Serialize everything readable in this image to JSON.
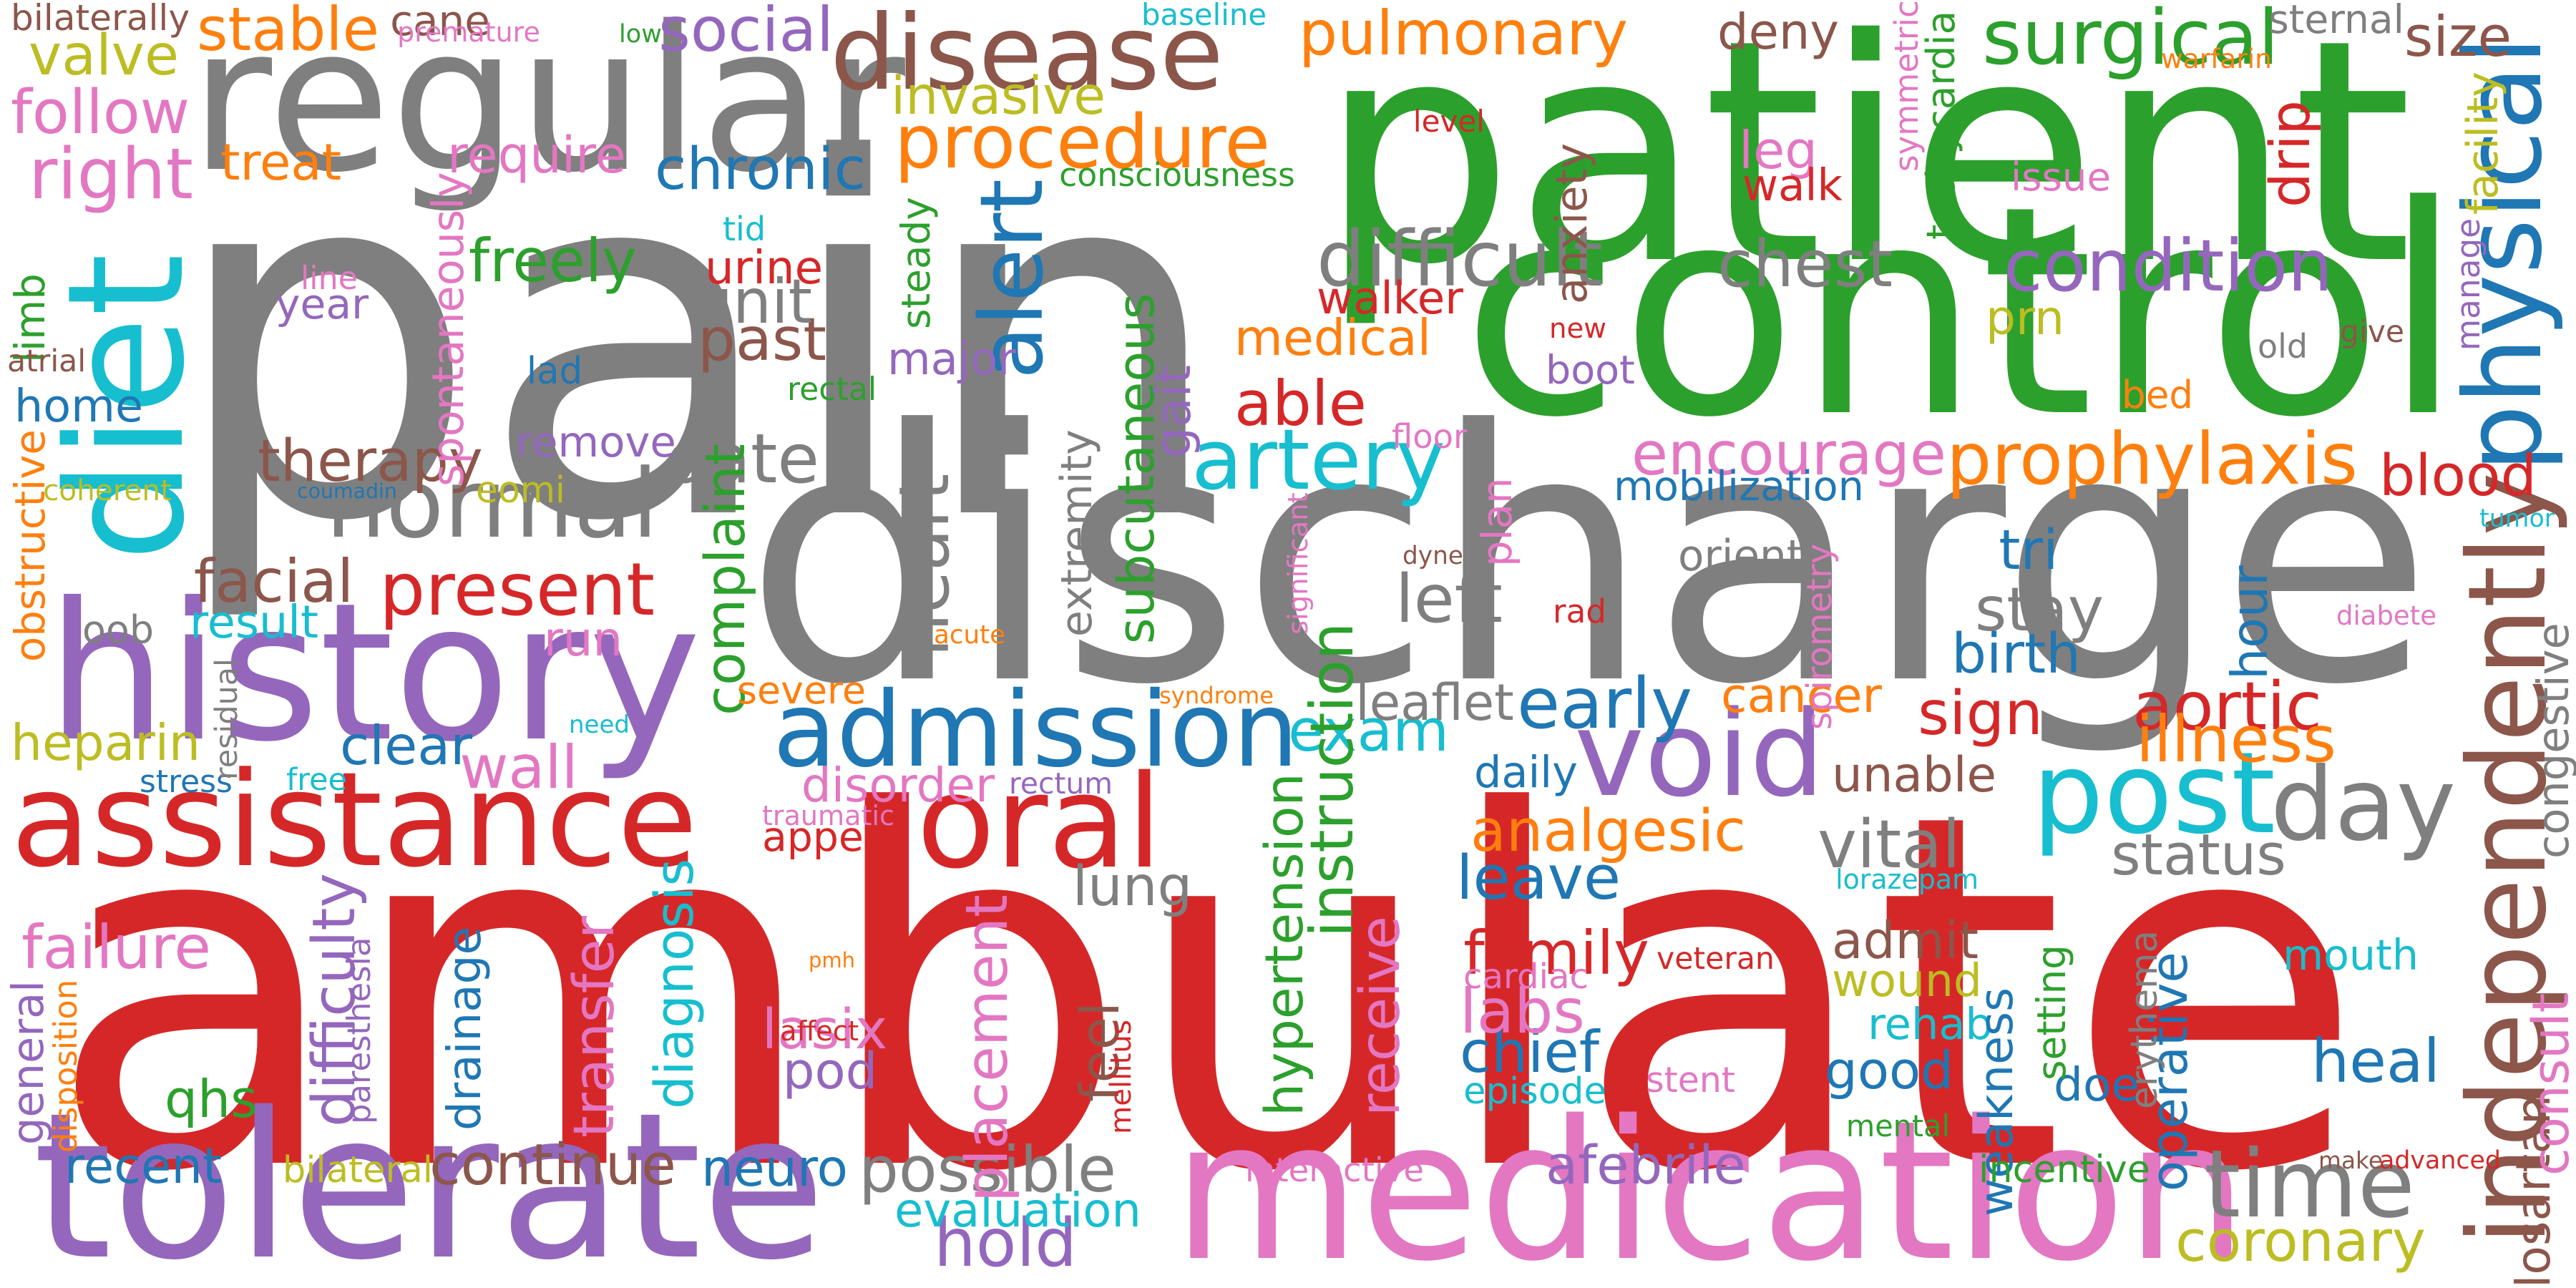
{
  "palette": {
    "gray": "#7f7f7f",
    "red": "#d62728",
    "green": "#2ca02c",
    "purple": "#9467bd",
    "cyan": "#17becf",
    "blue": "#1f77b4",
    "brown": "#8c564b",
    "orange": "#ff7f0e",
    "pink": "#e377c2",
    "olive": "#bcbd22"
  },
  "words": [
    {
      "text": "pain",
      "color": "gray"
    },
    {
      "text": "ambulate",
      "color": "red"
    },
    {
      "text": "discharge",
      "color": "gray"
    },
    {
      "text": "patient",
      "color": "green"
    },
    {
      "text": "control",
      "color": "green"
    },
    {
      "text": "regular",
      "color": "gray"
    },
    {
      "text": "history",
      "color": "purple"
    },
    {
      "text": "tolerate",
      "color": "purple"
    },
    {
      "text": "medication",
      "color": "pink"
    },
    {
      "text": "diet",
      "color": "cyan"
    },
    {
      "text": "disease",
      "color": "brown"
    },
    {
      "text": "normal",
      "color": "gray"
    },
    {
      "text": "assistance",
      "color": "red"
    },
    {
      "text": "admission",
      "color": "blue"
    },
    {
      "text": "void",
      "color": "purple"
    },
    {
      "text": "post",
      "color": "cyan"
    },
    {
      "text": "day",
      "color": "gray"
    },
    {
      "text": "time",
      "color": "gray"
    },
    {
      "text": "oral",
      "color": "red"
    },
    {
      "text": "physical",
      "color": "blue"
    },
    {
      "text": "independently",
      "color": "brown"
    },
    {
      "text": "procedure",
      "color": "orange"
    },
    {
      "text": "pulmonary",
      "color": "orange"
    },
    {
      "text": "surgical",
      "color": "green"
    },
    {
      "text": "condition",
      "color": "purple"
    },
    {
      "text": "chest",
      "color": "gray"
    },
    {
      "text": "difficult",
      "color": "gray"
    },
    {
      "text": "present",
      "color": "red"
    },
    {
      "text": "date",
      "color": "gray"
    },
    {
      "text": "artery",
      "color": "cyan"
    },
    {
      "text": "encourage",
      "color": "pink"
    },
    {
      "text": "prophylaxis",
      "color": "orange"
    },
    {
      "text": "blood",
      "color": "red"
    },
    {
      "text": "therapy",
      "color": "brown"
    },
    {
      "text": "chronic",
      "color": "blue"
    },
    {
      "text": "right",
      "color": "pink"
    },
    {
      "text": "follow",
      "color": "pink"
    },
    {
      "text": "valve",
      "color": "olive"
    },
    {
      "text": "stable",
      "color": "orange"
    },
    {
      "text": "social",
      "color": "purple"
    },
    {
      "text": "invasive",
      "color": "olive"
    },
    {
      "text": "alert",
      "color": "blue"
    },
    {
      "text": "subcutaneous",
      "color": "green"
    },
    {
      "text": "past",
      "color": "brown"
    },
    {
      "text": "unit",
      "color": "gray"
    },
    {
      "text": "freely",
      "color": "green"
    },
    {
      "text": "major",
      "color": "purple"
    },
    {
      "text": "medical",
      "color": "orange"
    },
    {
      "text": "able",
      "color": "red"
    },
    {
      "text": "exam",
      "color": "cyan"
    },
    {
      "text": "early",
      "color": "blue"
    },
    {
      "text": "sign",
      "color": "red"
    },
    {
      "text": "aortic",
      "color": "red"
    },
    {
      "text": "illness",
      "color": "orange"
    },
    {
      "text": "analgesic",
      "color": "orange"
    },
    {
      "text": "vital",
      "color": "gray"
    },
    {
      "text": "status",
      "color": "gray"
    },
    {
      "text": "leave",
      "color": "blue"
    },
    {
      "text": "family",
      "color": "red"
    },
    {
      "text": "wound",
      "color": "olive"
    },
    {
      "text": "admit",
      "color": "brown"
    },
    {
      "text": "unable",
      "color": "brown"
    },
    {
      "text": "heal",
      "color": "blue"
    },
    {
      "text": "good",
      "color": "blue"
    },
    {
      "text": "chief",
      "color": "blue"
    },
    {
      "text": "labs",
      "color": "pink"
    },
    {
      "text": "hold",
      "color": "purple"
    },
    {
      "text": "possible",
      "color": "gray"
    },
    {
      "text": "continue",
      "color": "brown"
    },
    {
      "text": "afebrile",
      "color": "purple"
    },
    {
      "text": "coronary",
      "color": "olive"
    },
    {
      "text": "evaluation",
      "color": "cyan"
    },
    {
      "text": "recent",
      "color": "blue"
    },
    {
      "text": "neuro",
      "color": "blue"
    },
    {
      "text": "clear",
      "color": "blue"
    },
    {
      "text": "wall",
      "color": "pink"
    },
    {
      "text": "heparin",
      "color": "olive"
    },
    {
      "text": "failure",
      "color": "pink"
    },
    {
      "text": "qhs",
      "color": "green"
    },
    {
      "text": "home",
      "color": "blue"
    },
    {
      "text": "facial",
      "color": "brown"
    },
    {
      "text": "year",
      "color": "purple"
    },
    {
      "text": "stay",
      "color": "gray"
    },
    {
      "text": "birth",
      "color": "blue"
    },
    {
      "text": "left",
      "color": "gray"
    },
    {
      "text": "orient",
      "color": "gray"
    },
    {
      "text": "mobilization",
      "color": "blue"
    },
    {
      "text": "tri",
      "color": "blue"
    },
    {
      "text": "hypertension",
      "color": "green"
    },
    {
      "text": "receive",
      "color": "pink"
    },
    {
      "text": "instruction",
      "color": "green"
    },
    {
      "text": "placement",
      "color": "pink"
    },
    {
      "text": "diagnosis",
      "color": "cyan"
    },
    {
      "text": "transfer",
      "color": "pink"
    },
    {
      "text": "drainage",
      "color": "blue"
    },
    {
      "text": "difficulty",
      "color": "purple"
    },
    {
      "text": "heart",
      "color": "gray"
    },
    {
      "text": "extremity",
      "color": "gray"
    },
    {
      "text": "gait",
      "color": "purple"
    },
    {
      "text": "complaint",
      "color": "green"
    },
    {
      "text": "spontaneously",
      "color": "pink"
    },
    {
      "text": "lung",
      "color": "gray"
    },
    {
      "text": "feel",
      "color": "brown"
    },
    {
      "text": "lasix",
      "color": "pink"
    },
    {
      "text": "pod",
      "color": "purple"
    },
    {
      "text": "appear",
      "color": "red"
    },
    {
      "text": "disorder",
      "color": "pink"
    },
    {
      "text": "mouth",
      "color": "cyan"
    },
    {
      "text": "rehab",
      "color": "cyan"
    },
    {
      "text": "doe",
      "color": "blue"
    },
    {
      "text": "cancer",
      "color": "orange"
    },
    {
      "text": "leaflet",
      "color": "gray"
    },
    {
      "text": "daily",
      "color": "blue"
    },
    {
      "text": "cardiac",
      "color": "pink"
    },
    {
      "text": "episode",
      "color": "cyan"
    },
    {
      "text": "weakness",
      "color": "blue"
    },
    {
      "text": "setting",
      "color": "green"
    },
    {
      "text": "operative",
      "color": "blue"
    },
    {
      "text": "erythema",
      "color": "gray"
    },
    {
      "text": "losartan",
      "color": "brown"
    },
    {
      "text": "consult",
      "color": "pink"
    },
    {
      "text": "congestive",
      "color": "gray"
    },
    {
      "text": "spirometry",
      "color": "pink"
    },
    {
      "text": "hour",
      "color": "blue"
    },
    {
      "text": "anxiety",
      "color": "brown"
    },
    {
      "text": "leg",
      "color": "pink"
    },
    {
      "text": "walk",
      "color": "red"
    },
    {
      "text": "walker",
      "color": "red"
    },
    {
      "text": "urine",
      "color": "red"
    },
    {
      "text": "deny",
      "color": "brown"
    },
    {
      "text": "sternal",
      "color": "gray"
    },
    {
      "text": "size",
      "color": "brown"
    },
    {
      "text": "issue",
      "color": "pink"
    },
    {
      "text": "drip",
      "color": "red"
    },
    {
      "text": "prn",
      "color": "olive"
    },
    {
      "text": "boot",
      "color": "purple"
    },
    {
      "text": "bed",
      "color": "orange"
    },
    {
      "text": "facility",
      "color": "olive"
    },
    {
      "text": "manage",
      "color": "purple"
    },
    {
      "text": "symmetric",
      "color": "pink"
    },
    {
      "text": "tachycardia",
      "color": "green"
    },
    {
      "text": "plan",
      "color": "pink"
    },
    {
      "text": "run",
      "color": "pink"
    },
    {
      "text": "remove",
      "color": "purple"
    },
    {
      "text": "require",
      "color": "pink"
    },
    {
      "text": "treat",
      "color": "orange"
    },
    {
      "text": "limb",
      "color": "green"
    },
    {
      "text": "obstructive",
      "color": "orange"
    },
    {
      "text": "general",
      "color": "purple"
    },
    {
      "text": "cane",
      "color": "brown"
    },
    {
      "text": "steady",
      "color": "green"
    },
    {
      "text": "severe",
      "color": "orange"
    },
    {
      "text": "eomi",
      "color": "olive"
    },
    {
      "text": "oob",
      "color": "gray"
    },
    {
      "text": "result",
      "color": "cyan"
    },
    {
      "text": "bilateral",
      "color": "olive"
    },
    {
      "text": "mental",
      "color": "green"
    },
    {
      "text": "incentive",
      "color": "green"
    },
    {
      "text": "stent",
      "color": "pink"
    },
    {
      "text": "veteran",
      "color": "red"
    },
    {
      "text": "lorazepam",
      "color": "cyan"
    },
    {
      "text": "tumor",
      "color": "cyan"
    },
    {
      "text": "diabete",
      "color": "pink"
    },
    {
      "text": "paresthesia",
      "color": "purple"
    },
    {
      "text": "disposition",
      "color": "orange"
    },
    {
      "text": "traumatic",
      "color": "pink"
    },
    {
      "text": "rectum",
      "color": "purple"
    },
    {
      "text": "syndrome",
      "color": "orange"
    },
    {
      "text": "acute",
      "color": "orange"
    },
    {
      "text": "significant",
      "color": "pink"
    },
    {
      "text": "dyne",
      "color": "brown"
    },
    {
      "text": "rad",
      "color": "red"
    },
    {
      "text": "floor",
      "color": "pink"
    },
    {
      "text": "new",
      "color": "red"
    },
    {
      "text": "coumadin",
      "color": "blue"
    },
    {
      "text": "coherent",
      "color": "olive"
    },
    {
      "text": "lad",
      "color": "blue"
    },
    {
      "text": "atrial",
      "color": "brown"
    },
    {
      "text": "line",
      "color": "pink"
    },
    {
      "text": "tid",
      "color": "cyan"
    },
    {
      "text": "rectal",
      "color": "green"
    },
    {
      "text": "consciousness",
      "color": "green"
    },
    {
      "text": "bilaterally",
      "color": "brown"
    },
    {
      "text": "premature",
      "color": "pink"
    },
    {
      "text": "low",
      "color": "green"
    },
    {
      "text": "baseline",
      "color": "cyan"
    },
    {
      "text": "warfarin",
      "color": "orange"
    },
    {
      "text": "level",
      "color": "red"
    },
    {
      "text": "old",
      "color": "gray"
    },
    {
      "text": "give",
      "color": "brown"
    },
    {
      "text": "make",
      "color": "brown"
    },
    {
      "text": "advanced",
      "color": "red"
    },
    {
      "text": "interactive",
      "color": "pink"
    },
    {
      "text": "mellitus",
      "color": "red"
    },
    {
      "text": "affect",
      "color": "red"
    },
    {
      "text": "pmh",
      "color": "orange"
    },
    {
      "text": "stress",
      "color": "blue"
    },
    {
      "text": "free",
      "color": "cyan"
    },
    {
      "text": "need",
      "color": "cyan"
    },
    {
      "text": "residual",
      "color": "gray"
    }
  ]
}
